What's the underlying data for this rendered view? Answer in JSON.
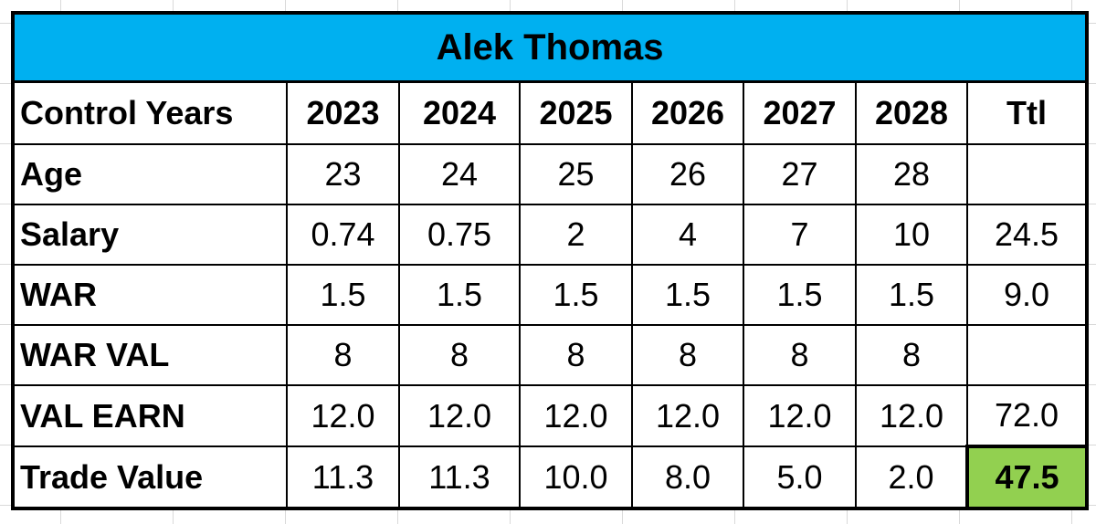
{
  "title": "Alek Thomas",
  "table": {
    "header": [
      "Control Years",
      "2023",
      "2024",
      "2025",
      "2026",
      "2027",
      "2028",
      "Ttl"
    ],
    "rows": [
      [
        "Age",
        "23",
        "24",
        "25",
        "26",
        "27",
        "28"
      ],
      [
        "Salary",
        "0.74",
        "0.75",
        "2",
        "4",
        "7",
        "10",
        "24.5"
      ],
      [
        "WAR",
        "1.5",
        "1.5",
        "1.5",
        "1.5",
        "1.5",
        "1.5",
        "9.0"
      ],
      [
        "WAR VAL",
        "8",
        "8",
        "8",
        "8",
        "8",
        "8"
      ],
      [
        "VAL EARN",
        "12.0",
        "12.0",
        "12.0",
        "12.0",
        "12.0",
        "12.0",
        "72.0"
      ],
      [
        "Trade Value",
        "11.3",
        "11.3",
        "10.0",
        "8.0",
        "5.0",
        "2.0",
        "47.5"
      ]
    ]
  }
}
